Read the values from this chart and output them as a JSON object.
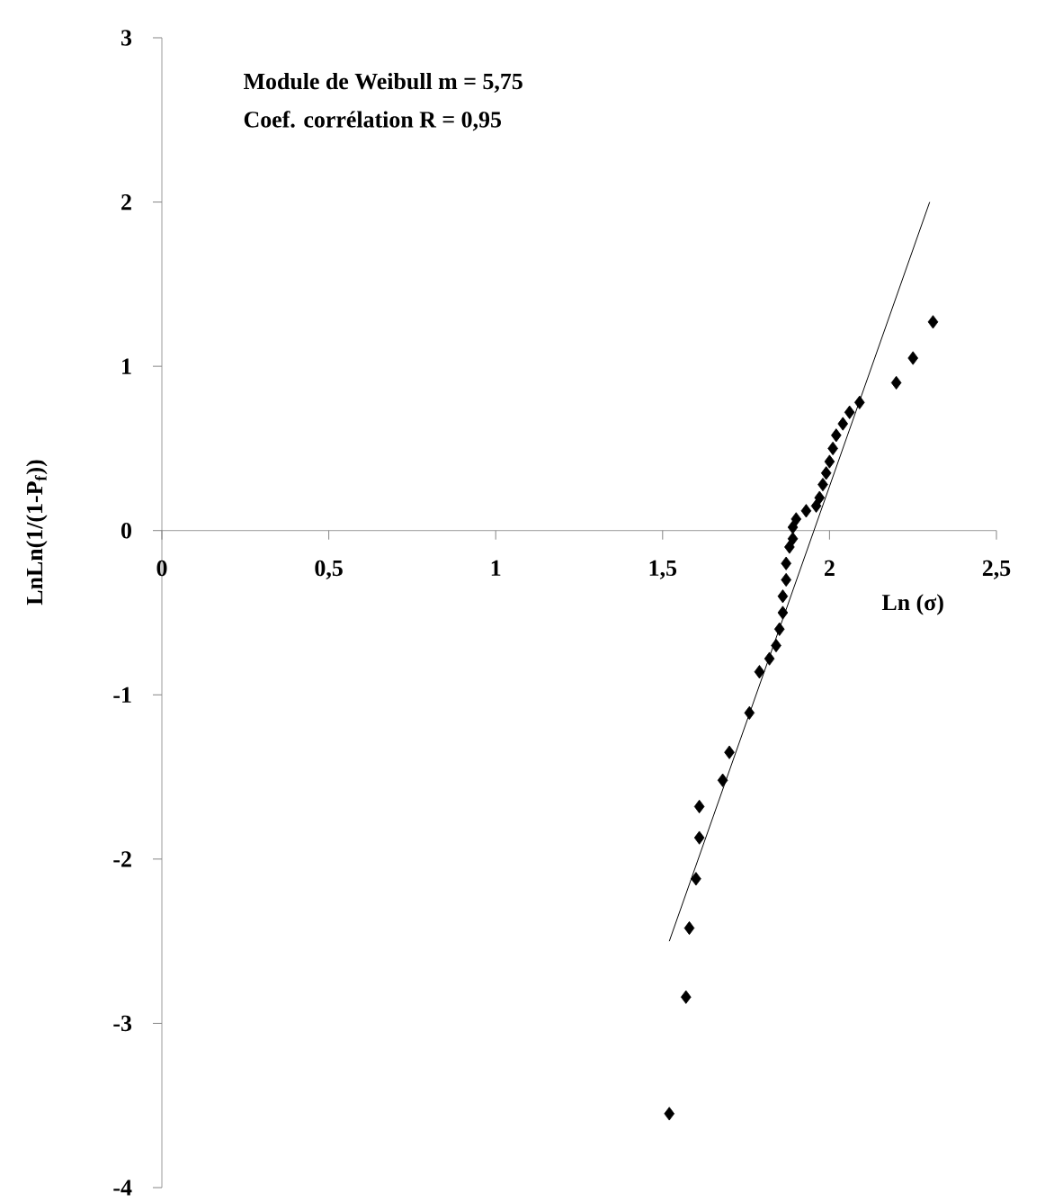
{
  "chart_data": {
    "type": "scatter",
    "xlabel": "Ln  (σ)",
    "ylabel": "LnLn(1/(1-P$_{f}$))",
    "annotations": [
      "Module de Weibull m = 5,75",
      "Coef. corrélation    R = 0,95"
    ],
    "xlim": [
      0,
      2.5
    ],
    "ylim": [
      -4,
      3
    ],
    "xticks": [
      0,
      {
        "value": 0.5,
        "label": "0,5"
      },
      1,
      {
        "value": 1.5,
        "label": "1,5"
      },
      2,
      {
        "value": 2.5,
        "label": "2,5"
      }
    ],
    "yticks": [
      -4,
      -3,
      -2,
      -1,
      0,
      1,
      2,
      3
    ],
    "grid": false,
    "marker": "diamond",
    "series": [
      {
        "color": "#000000",
        "x": [
          1.52,
          1.57,
          1.58,
          1.6,
          1.61,
          1.61,
          1.68,
          1.7,
          1.76,
          1.79,
          1.82,
          1.84,
          1.85,
          1.86,
          1.86,
          1.87,
          1.87,
          1.88,
          1.89,
          1.89,
          1.9,
          1.93,
          1.96,
          1.97,
          1.98,
          1.99,
          2.0,
          2.01,
          2.02,
          2.04,
          2.06,
          2.09,
          2.2,
          2.25,
          2.31
        ],
        "values": [
          -3.55,
          -2.84,
          -2.42,
          -2.12,
          -1.87,
          -1.68,
          -1.52,
          -1.35,
          -1.11,
          -0.86,
          -0.78,
          -0.7,
          -0.6,
          -0.5,
          -0.4,
          -0.3,
          -0.2,
          -0.1,
          -0.05,
          0.02,
          0.07,
          0.12,
          0.15,
          0.2,
          0.28,
          0.35,
          0.42,
          0.5,
          0.58,
          0.65,
          0.72,
          0.78,
          0.9,
          1.05,
          1.27
        ]
      },
      {
        "type": "line",
        "color": "#000000",
        "marker": "none",
        "line_style": "solid",
        "x": [
          1.52,
          2.3
        ],
        "values": [
          -2.5,
          2.0
        ]
      }
    ]
  }
}
